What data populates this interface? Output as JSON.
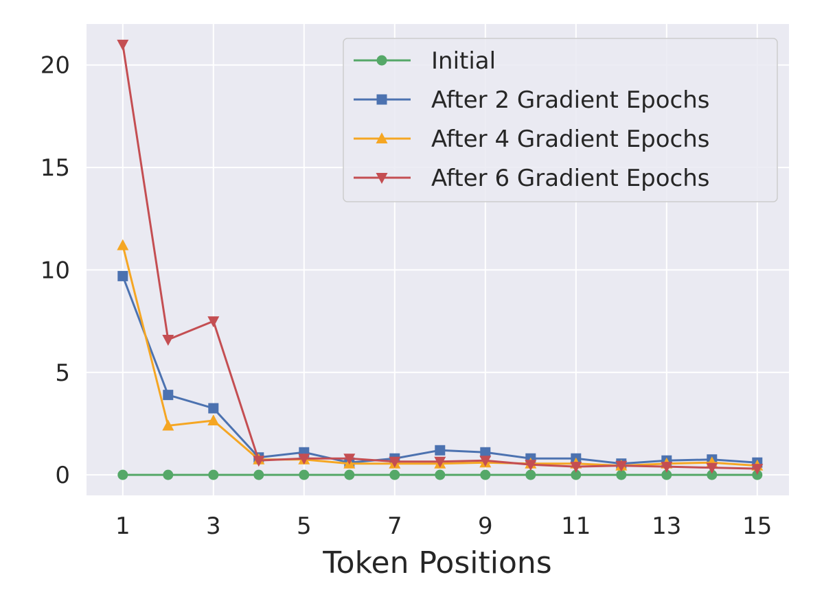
{
  "chart_data": {
    "type": "line",
    "title": "",
    "xlabel": "Token Positions",
    "ylabel": "",
    "x": [
      1,
      2,
      3,
      4,
      5,
      6,
      7,
      8,
      9,
      10,
      11,
      12,
      13,
      14,
      15
    ],
    "xticks": [
      1,
      3,
      5,
      7,
      9,
      11,
      13,
      15
    ],
    "yticks": [
      0,
      5,
      10,
      15,
      20
    ],
    "xlim": [
      0.2,
      15.7
    ],
    "ylim": [
      -1.0,
      22.0
    ],
    "grid": true,
    "legend_position": "top-right",
    "series": [
      {
        "name": "Initial",
        "color": "#55a868",
        "marker": "circle",
        "values": [
          0,
          0,
          0,
          0,
          0,
          0,
          0,
          0,
          0,
          0,
          0,
          0,
          0,
          0,
          0
        ]
      },
      {
        "name": "After 2 Gradient Epochs",
        "color": "#4c72b0",
        "marker": "square",
        "values": [
          9.7,
          3.9,
          3.25,
          0.85,
          1.1,
          0.6,
          0.8,
          1.2,
          1.1,
          0.8,
          0.8,
          0.55,
          0.7,
          0.75,
          0.6
        ]
      },
      {
        "name": "After 4 Gradient Epochs",
        "color": "#f5a623",
        "marker": "triangle-up",
        "values": [
          11.2,
          2.4,
          2.65,
          0.75,
          0.75,
          0.55,
          0.55,
          0.55,
          0.6,
          0.55,
          0.55,
          0.45,
          0.55,
          0.6,
          0.45
        ]
      },
      {
        "name": "After 6 Gradient Epochs",
        "color": "#c44e52",
        "marker": "triangle-down",
        "values": [
          21.0,
          6.6,
          7.5,
          0.7,
          0.8,
          0.8,
          0.65,
          0.65,
          0.7,
          0.5,
          0.4,
          0.45,
          0.4,
          0.35,
          0.3
        ]
      }
    ]
  }
}
